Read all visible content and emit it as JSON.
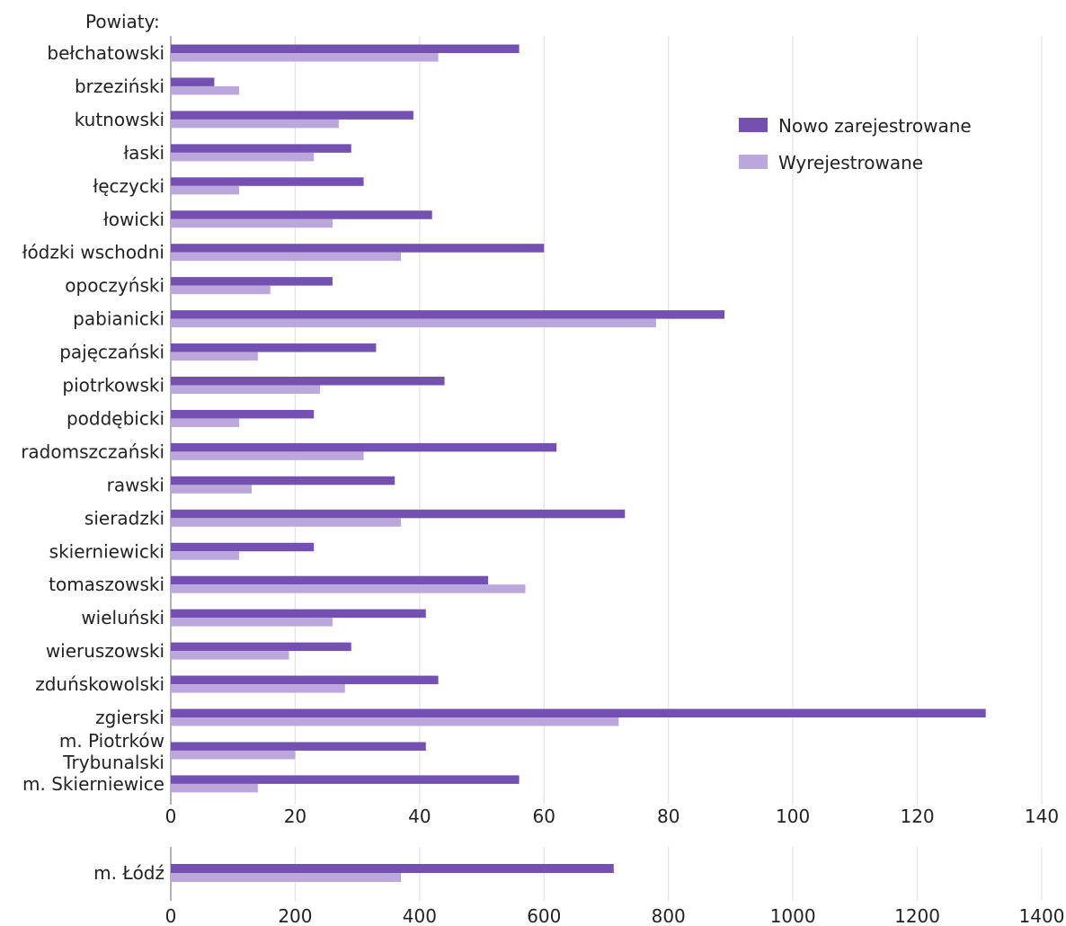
{
  "colors": {
    "new": "#7350b2",
    "dereg": "#bba7dc",
    "grid": "#e3e3e3",
    "axis": "#9a9a9a"
  },
  "chart_data": [
    {
      "type": "bar",
      "orientation": "horizontal",
      "axis_title": "Powiaty:",
      "categories": [
        [
          "bełchatowski"
        ],
        [
          "brzeziński"
        ],
        [
          "kutnowski"
        ],
        [
          "łaski"
        ],
        [
          "łęczycki"
        ],
        [
          "łowicki"
        ],
        [
          "łódzki wschodni"
        ],
        [
          "opoczyński"
        ],
        [
          "pabianicki"
        ],
        [
          "pajęczański"
        ],
        [
          "piotrkowski"
        ],
        [
          "poddębicki"
        ],
        [
          "radomszczański"
        ],
        [
          "rawski"
        ],
        [
          "sieradzki"
        ],
        [
          "skierniewicki"
        ],
        [
          "tomaszowski"
        ],
        [
          "wieluński"
        ],
        [
          "wieruszowski"
        ],
        [
          "zduńskowolski"
        ],
        [
          "zgierski"
        ],
        [
          "m. Piotrków",
          "Trybunalski"
        ],
        [
          "m. Skierniewice"
        ]
      ],
      "series": [
        {
          "name": "Nowo zarejestrowane",
          "values": [
            56,
            7,
            39,
            29,
            31,
            42,
            60,
            26,
            89,
            33,
            44,
            23,
            62,
            36,
            73,
            23,
            51,
            41,
            29,
            43,
            131,
            41,
            56
          ]
        },
        {
          "name": "Wyrejestrowane",
          "values": [
            43,
            11,
            27,
            23,
            11,
            26,
            37,
            16,
            78,
            14,
            24,
            11,
            31,
            13,
            37,
            11,
            57,
            26,
            19,
            28,
            72,
            20,
            14
          ]
        }
      ],
      "xlim": [
        0,
        140
      ],
      "xticks": [
        0,
        20,
        40,
        60,
        80,
        100,
        120,
        140
      ],
      "grid": true,
      "legend": "top-right"
    },
    {
      "type": "bar",
      "orientation": "horizontal",
      "categories": [
        [
          "m. Łódź"
        ]
      ],
      "series": [
        {
          "name": "Nowo zarejestrowane",
          "values": [
            712
          ]
        },
        {
          "name": "Wyrejestrowane",
          "values": [
            370
          ]
        }
      ],
      "xlim": [
        0,
        1400
      ],
      "xticks": [
        0,
        200,
        400,
        600,
        800,
        1000,
        1200,
        1400
      ],
      "grid": true
    }
  ]
}
